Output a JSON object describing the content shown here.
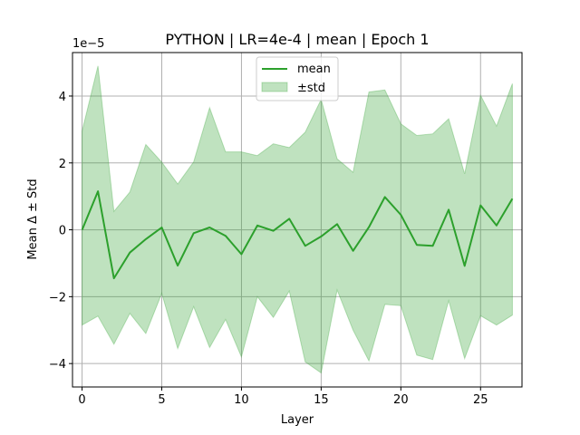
{
  "chart_data": {
    "type": "line",
    "title": "PYTHON | LR=4e-4 | mean | Epoch 1",
    "xlabel": "Layer",
    "ylabel": "Mean Δ ± Std",
    "y_offset_text": "1e−5",
    "y_scale": 1e-05,
    "xlim": [
      -0.6,
      27.6
    ],
    "ylim": [
      -4.7,
      5.3
    ],
    "x_ticks": [
      0,
      5,
      10,
      15,
      20,
      25
    ],
    "y_ticks": [
      -4,
      -2,
      0,
      2,
      4
    ],
    "grid": true,
    "legend_position": "top-center",
    "x": [
      0,
      1,
      2,
      3,
      4,
      5,
      6,
      7,
      8,
      9,
      10,
      11,
      12,
      13,
      14,
      15,
      16,
      17,
      18,
      19,
      20,
      21,
      22,
      23,
      24,
      25,
      26,
      27
    ],
    "series": [
      {
        "name": "mean",
        "color": "#2ca02c",
        "values": [
          0.0,
          1.15,
          -1.45,
          -0.68,
          -0.28,
          0.07,
          -1.07,
          -0.1,
          0.07,
          -0.18,
          -0.73,
          0.13,
          -0.03,
          0.33,
          -0.48,
          -0.2,
          0.17,
          -0.63,
          0.08,
          0.98,
          0.45,
          -0.45,
          -0.48,
          0.6,
          -1.08,
          0.73,
          0.13,
          0.93
        ]
      }
    ],
    "band": {
      "name": "±std",
      "color": "#2ca02c",
      "upper": [
        2.95,
        4.9,
        0.55,
        1.13,
        2.55,
        2.02,
        1.37,
        2.03,
        3.65,
        2.33,
        2.33,
        2.22,
        2.57,
        2.46,
        2.92,
        3.9,
        2.12,
        1.72,
        4.12,
        4.18,
        3.17,
        2.82,
        2.87,
        3.32,
        1.67,
        4.02,
        3.1,
        4.37
      ],
      "lower": [
        -2.85,
        -2.58,
        -3.42,
        -2.5,
        -3.1,
        -1.9,
        -3.55,
        -2.3,
        -3.52,
        -2.68,
        -3.8,
        -2.0,
        -2.62,
        -1.83,
        -3.95,
        -4.28,
        -1.8,
        -3.0,
        -3.92,
        -2.23,
        -2.27,
        -3.75,
        -3.88,
        -2.12,
        -3.85,
        -2.57,
        -2.85,
        -2.55
      ]
    }
  }
}
